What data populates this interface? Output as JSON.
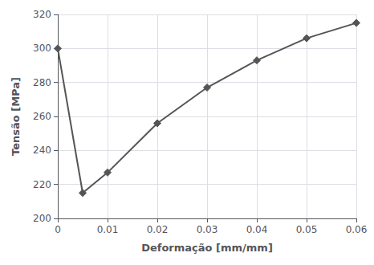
{
  "chart_data": {
    "type": "line",
    "x": [
      0,
      0.005,
      0.01,
      0.02,
      0.03,
      0.04,
      0.05,
      0.06
    ],
    "values": [
      300,
      215,
      227,
      256,
      277,
      293,
      306,
      315
    ],
    "color": "#555555",
    "marker": "diamond",
    "xlabel": "Deformação [mm/mm]",
    "ylabel": "Tensão [MPa]",
    "xlim": [
      0,
      0.06
    ],
    "ylim": [
      200,
      320
    ],
    "xticks": [
      0,
      0.01,
      0.02,
      0.03,
      0.04,
      0.05,
      0.06
    ],
    "yticks": [
      200,
      220,
      240,
      260,
      280,
      300,
      320
    ],
    "grid": true
  }
}
